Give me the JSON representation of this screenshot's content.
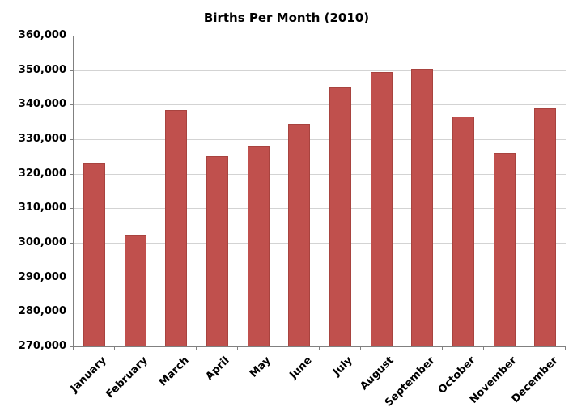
{
  "chart_data": {
    "type": "bar",
    "title": "Births Per Month (2010)",
    "categories": [
      "January",
      "February",
      "March",
      "April",
      "May",
      "June",
      "July",
      "August",
      "September",
      "October",
      "November",
      "December"
    ],
    "values": [
      323000,
      302000,
      338500,
      325000,
      328000,
      334500,
      345000,
      349500,
      350500,
      336500,
      326000,
      339000
    ],
    "xlabel": "",
    "ylabel": "",
    "ylim": [
      270000,
      360000
    ],
    "ytick_interval": 10000,
    "ytick_labels": [
      "270,000",
      "280,000",
      "290,000",
      "300,000",
      "310,000",
      "320,000",
      "330,000",
      "340,000",
      "350,000",
      "360,000"
    ],
    "grid": true,
    "legend": "none",
    "bar_color": "#c0504d",
    "bar_border_color": "#a8433f",
    "gridline_color": "#d3d3d3",
    "axis_color": "#808080"
  }
}
